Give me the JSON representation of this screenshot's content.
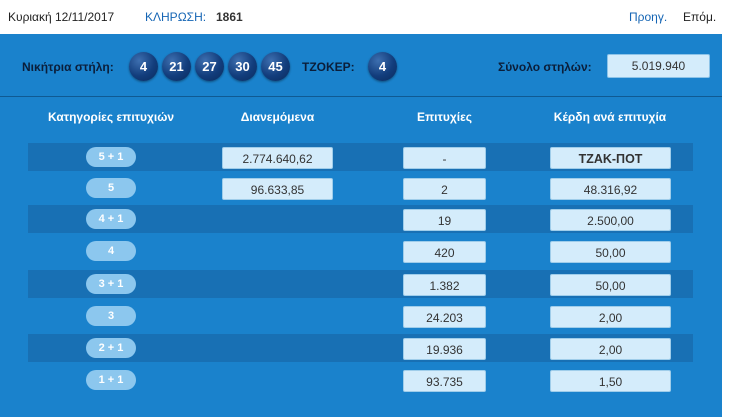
{
  "header": {
    "date": "Κυριακή 12/11/2017",
    "draw_label": "ΚΛΗΡΩΣΗ:",
    "draw_number": "1861",
    "prev_label": "Προηγ.",
    "next_label": "Επόμ."
  },
  "result": {
    "winning_label": "Νικήτρια στήλη:",
    "numbers": [
      "4",
      "21",
      "27",
      "30",
      "45"
    ],
    "joker_label": "ΤΖΟΚΕΡ:",
    "joker": "4",
    "total_label": "Σύνολο στηλών:",
    "total_columns": "5.019.940"
  },
  "table": {
    "headers": {
      "category": "Κατηγορίες επιτυχιών",
      "distributed": "Διανεμόμενα",
      "winners": "Επιτυχίες",
      "prize": "Κέρδη ανά επιτυχία"
    },
    "rows": [
      {
        "category": "5 + 1",
        "distributed": "2.774.640,62",
        "winners": "-",
        "prize": "ΤΖΑΚ-ΠΟΤ"
      },
      {
        "category": "5",
        "distributed": "96.633,85",
        "winners": "2",
        "prize": "48.316,92"
      },
      {
        "category": "4 + 1",
        "distributed": "",
        "winners": "19",
        "prize": "2.500,00"
      },
      {
        "category": "4",
        "distributed": "",
        "winners": "420",
        "prize": "50,00"
      },
      {
        "category": "3 + 1",
        "distributed": "",
        "winners": "1.382",
        "prize": "50,00"
      },
      {
        "category": "3",
        "distributed": "",
        "winners": "24.203",
        "prize": "2,00"
      },
      {
        "category": "2 + 1",
        "distributed": "",
        "winners": "19.936",
        "prize": "2,00"
      },
      {
        "category": "1 + 1",
        "distributed": "",
        "winners": "93.735",
        "prize": "1,50"
      }
    ]
  }
}
